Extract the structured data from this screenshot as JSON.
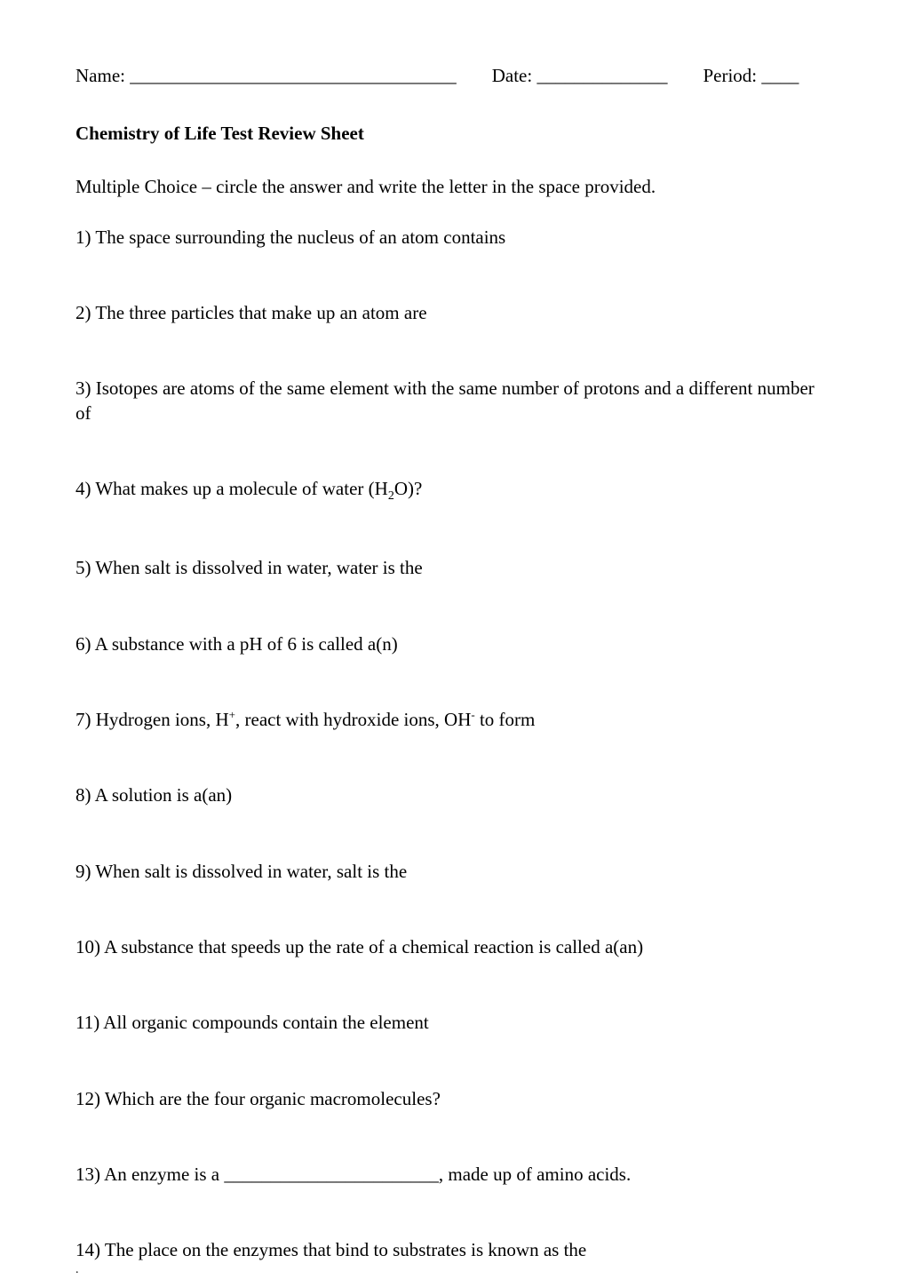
{
  "header": {
    "name_label": "Name: ___________________________________",
    "date_label": "Date: ______________",
    "period_label": "Period: ____"
  },
  "title": "Chemistry of Life Test Review Sheet",
  "instructions": "Multiple Choice – circle the answer and write the letter in the space provided.",
  "questions": {
    "q1": "1) The space surrounding the nucleus of an atom contains",
    "q2": "2) The three particles that make up an atom are",
    "q3": "3) Isotopes are atoms of the same element with the same number of protons and a different number of",
    "q4_pre": "4) What makes up a molecule of water (H",
    "q4_sub": "2",
    "q4_post": "O)?",
    "q5": "5) When salt is dissolved in water, water is the",
    "q6": "6) A substance with a pH of 6 is called a(n)",
    "q7_pre": "7) Hydrogen ions, H",
    "q7_sup1": "+",
    "q7_mid": ", react with hydroxide ions, OH",
    "q7_sup2": "-",
    "q7_post": " to form",
    "q8": "8) A solution is a(an)",
    "q9": "9) When salt is dissolved in water, salt is the",
    "q10": "10) A substance that speeds up the rate of a chemical reaction is called a(an)",
    "q11": "11) All organic compounds contain the element",
    "q12": "12) Which are the four organic macromolecules?",
    "q13": "13) An enzyme is a _______________________, made up of amino acids.",
    "q14": "14) The place on the enzymes that bind to substrates is known as the",
    "dot": "."
  }
}
